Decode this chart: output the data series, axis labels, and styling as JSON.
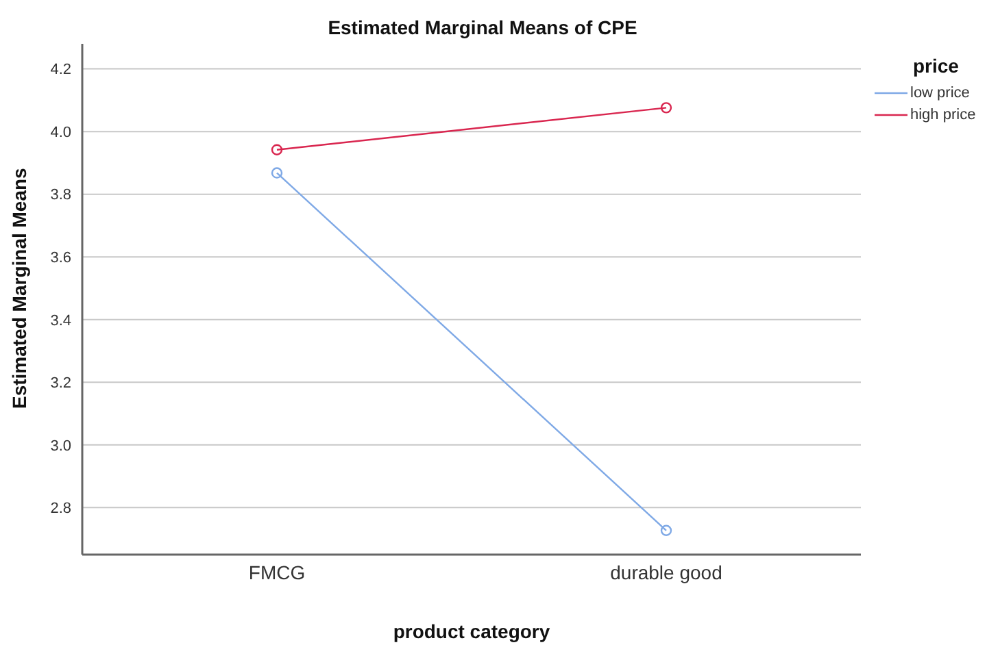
{
  "chart_data": {
    "type": "line",
    "title": "Estimated Marginal Means of CPE",
    "xlabel": "product category",
    "ylabel": "Estimated Marginal Means",
    "legend_title": "price",
    "categories": [
      "FMCG",
      "durable good"
    ],
    "series": [
      {
        "name": "low price",
        "color": "#7fa9e6",
        "values": [
          3.868,
          2.727
        ]
      },
      {
        "name": "high price",
        "color": "#d9264f",
        "values": [
          3.942,
          4.076
        ]
      }
    ],
    "ylim": [
      2.65,
      4.28
    ],
    "yticks": [
      2.8,
      {
        "value": 3,
        "label": "3.0"
      },
      3.2,
      3.4,
      3.6,
      3.8,
      {
        "value": 4,
        "label": "4.0"
      },
      4.2
    ],
    "grid": "y",
    "legend": "top right",
    "marker": "circle",
    "line_style": "solid"
  }
}
